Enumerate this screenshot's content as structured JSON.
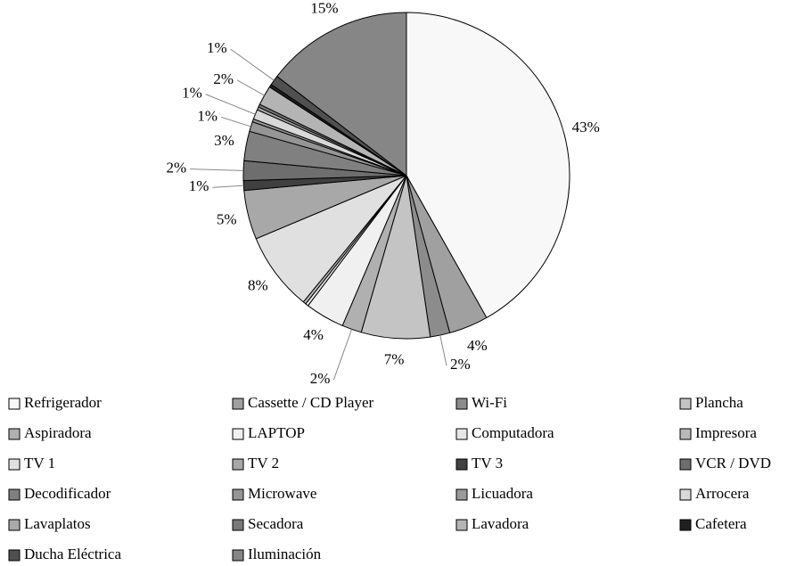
{
  "chart_data": {
    "type": "pie",
    "categories": [
      "Refrigerador",
      "Cassette / CD Player",
      "Wi-Fi",
      "Plancha",
      "Aspiradora",
      "LAPTOP",
      "Computadora",
      "Impresora",
      "TV 1",
      "TV 2",
      "TV 3",
      "VCR / DVD",
      "Decodificador",
      "Microwave",
      "Licuadora",
      "Arrocera",
      "Lavaplatos",
      "Secadora",
      "Lavadora",
      "Cafetera",
      "Ducha Eléctrica",
      "Iluminación"
    ],
    "values": [
      43,
      4,
      2,
      7,
      2,
      4,
      0.3,
      0.3,
      8,
      5,
      1,
      2,
      3,
      1,
      0.3,
      1,
      0.3,
      0.3,
      2,
      0.3,
      1,
      15
    ],
    "value_labels": [
      "43%",
      "4%",
      "2%",
      "7%",
      "2%",
      "4%",
      null,
      null,
      "8%",
      "5%",
      "1%",
      "2%",
      "3%",
      "1%",
      null,
      "1%",
      null,
      null,
      "2%",
      null,
      "1%",
      "15%"
    ],
    "colors": [
      "#f8f8f8",
      "#a0a0a0",
      "#8c8c8c",
      "#c4c4c4",
      "#b0b0b0",
      "#f0f0f0",
      "#e6e6e6",
      "#b8b8b8",
      "#e0e0e0",
      "#a8a8a8",
      "#404040",
      "#6e6e6e",
      "#808080",
      "#959595",
      "#9a9a9a",
      "#d8d8d8",
      "#aaaaaa",
      "#787878",
      "#b4b4b4",
      "#202020",
      "#505050",
      "#868686"
    ]
  }
}
